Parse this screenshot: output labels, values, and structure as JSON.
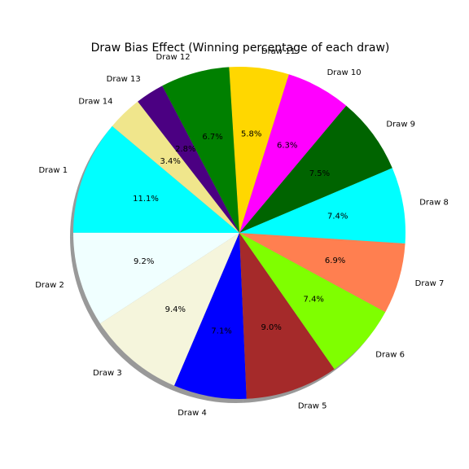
{
  "chart_data": {
    "type": "pie",
    "title": "Draw Bias Effect (Winning percentage of each draw)",
    "categories": [
      "Draw 1",
      "Draw 2",
      "Draw 3",
      "Draw 4",
      "Draw 5",
      "Draw 6",
      "Draw 7",
      "Draw 8",
      "Draw 9",
      "Draw 10",
      "Draw 11",
      "Draw 12",
      "Draw 13",
      "Draw 14"
    ],
    "values": [
      11.1,
      9.2,
      9.4,
      7.1,
      9.0,
      7.4,
      6.9,
      7.4,
      7.5,
      6.3,
      5.8,
      6.7,
      2.8,
      3.4
    ],
    "value_labels": [
      "11.1%",
      "9.2%",
      "9.4%",
      "7.1%",
      "9.0%",
      "7.4%",
      "6.9%",
      "7.4%",
      "7.5%",
      "6.3%",
      "5.8%",
      "6.7%",
      "2.8%",
      "3.4%"
    ],
    "colors": [
      "#00ffff",
      "#f0ffff",
      "#f5f5dc",
      "#0000ff",
      "#a52a2a",
      "#7fff00",
      "#ff7f50",
      "#00ffff",
      "#006400",
      "#ff00ff",
      "#ffd700",
      "#008000",
      "#4b0082",
      "#f0e68c"
    ],
    "start_angle_deg": 140,
    "direction": "counterclockwise",
    "shadow": true
  }
}
